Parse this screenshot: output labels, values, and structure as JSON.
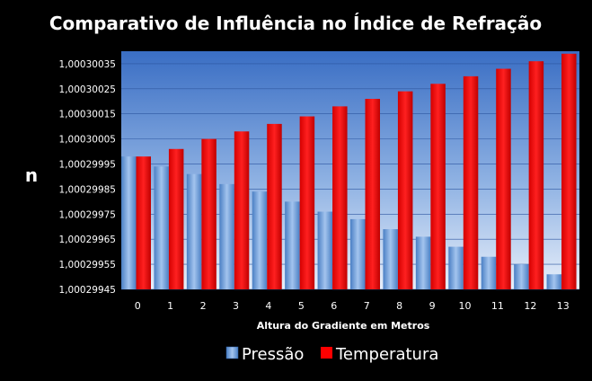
{
  "chart_data": {
    "type": "bar",
    "title": "Comparativo de Influência no Índice de Refração",
    "xlabel": "Altura do Gradiente em Metros",
    "ylabel": "n",
    "categories": [
      "0",
      "1",
      "2",
      "3",
      "4",
      "5",
      "6",
      "7",
      "8",
      "9",
      "10",
      "11",
      "12",
      "13"
    ],
    "yticks": [
      1.00029945,
      1.00029955,
      1.00029965,
      1.00029975,
      1.00029985,
      1.00029995,
      1.00030005,
      1.00030015,
      1.00030025,
      1.00030035
    ],
    "ytick_labels": [
      "1,00029945",
      "1,00029955",
      "1,00029965",
      "1,00029975",
      "1,00029985",
      "1,00029995",
      "1,00030005",
      "1,00030015",
      "1,00030025",
      "1,00030035"
    ],
    "ylim": [
      1.00029945,
      1.0003004
    ],
    "series": [
      {
        "name": "Pressão",
        "color": "#5b8fd0",
        "values": [
          1.00029998,
          1.00029994,
          1.00029991,
          1.00029987,
          1.00029984,
          1.0002998,
          1.00029976,
          1.00029973,
          1.00029969,
          1.00029966,
          1.00029962,
          1.00029958,
          1.00029955,
          1.00029951
        ]
      },
      {
        "name": "Temperatura",
        "color": "#ff0000",
        "values": [
          1.00029998,
          1.00030001,
          1.00030005,
          1.00030008,
          1.00030011,
          1.00030014,
          1.00030018,
          1.00030021,
          1.00030024,
          1.00030027,
          1.0003003,
          1.00030033,
          1.00030036,
          1.00030039
        ]
      }
    ],
    "legend_position": "bottom",
    "grid": true,
    "plot_background": "gradient-blue"
  }
}
